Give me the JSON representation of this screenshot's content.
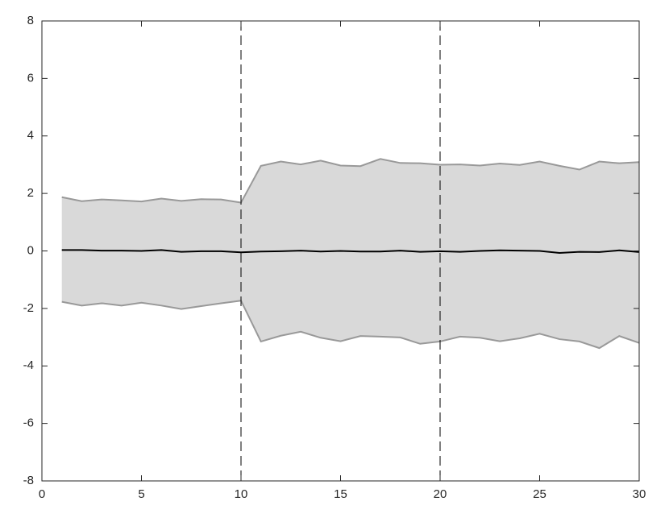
{
  "chart_data": {
    "type": "line",
    "x": [
      1,
      2,
      3,
      4,
      5,
      6,
      7,
      8,
      9,
      10,
      11,
      12,
      13,
      14,
      15,
      16,
      17,
      18,
      19,
      20,
      21,
      22,
      23,
      24,
      25,
      26,
      27,
      28,
      29,
      30
    ],
    "series": [
      {
        "color": "#000000",
        "values": [
          0.03,
          0.03,
          0.01,
          0.01,
          0.0,
          0.03,
          -0.03,
          -0.01,
          -0.01,
          -0.05,
          -0.02,
          -0.01,
          0.01,
          -0.02,
          0.0,
          -0.02,
          -0.02,
          0.01,
          -0.03,
          -0.01,
          -0.03,
          0.0,
          0.02,
          0.01,
          0.0,
          -0.07,
          -0.03,
          -0.04,
          0.02,
          -0.04
        ]
      }
    ],
    "band": {
      "fill": "#d9d9d9",
      "edge": "#999999",
      "upper": [
        1.87,
        1.73,
        1.79,
        1.76,
        1.72,
        1.82,
        1.74,
        1.8,
        1.79,
        1.68,
        2.96,
        3.11,
        3.01,
        3.14,
        2.97,
        2.95,
        3.2,
        3.06,
        3.05,
        3.0,
        3.01,
        2.97,
        3.04,
        2.99,
        3.11,
        2.96,
        2.83,
        3.11,
        3.05,
        3.09
      ],
      "lower": [
        -1.77,
        -1.9,
        -1.82,
        -1.9,
        -1.8,
        -1.9,
        -2.02,
        -1.92,
        -1.82,
        -1.73,
        -3.15,
        -2.95,
        -2.81,
        -3.02,
        -3.14,
        -2.96,
        -2.98,
        -3.01,
        -3.23,
        -3.15,
        -2.98,
        -3.02,
        -3.14,
        -3.04,
        -2.88,
        -3.07,
        -3.15,
        -3.38,
        -2.96,
        -3.2
      ]
    },
    "vlines": [
      10,
      20
    ],
    "xlim": [
      0,
      30
    ],
    "xticks": [
      0,
      5,
      10,
      15,
      20,
      25,
      30
    ],
    "ylim": [
      -8,
      8
    ],
    "yticks": [
      -8,
      -6,
      -4,
      -2,
      0,
      2,
      4,
      6,
      8
    ]
  }
}
